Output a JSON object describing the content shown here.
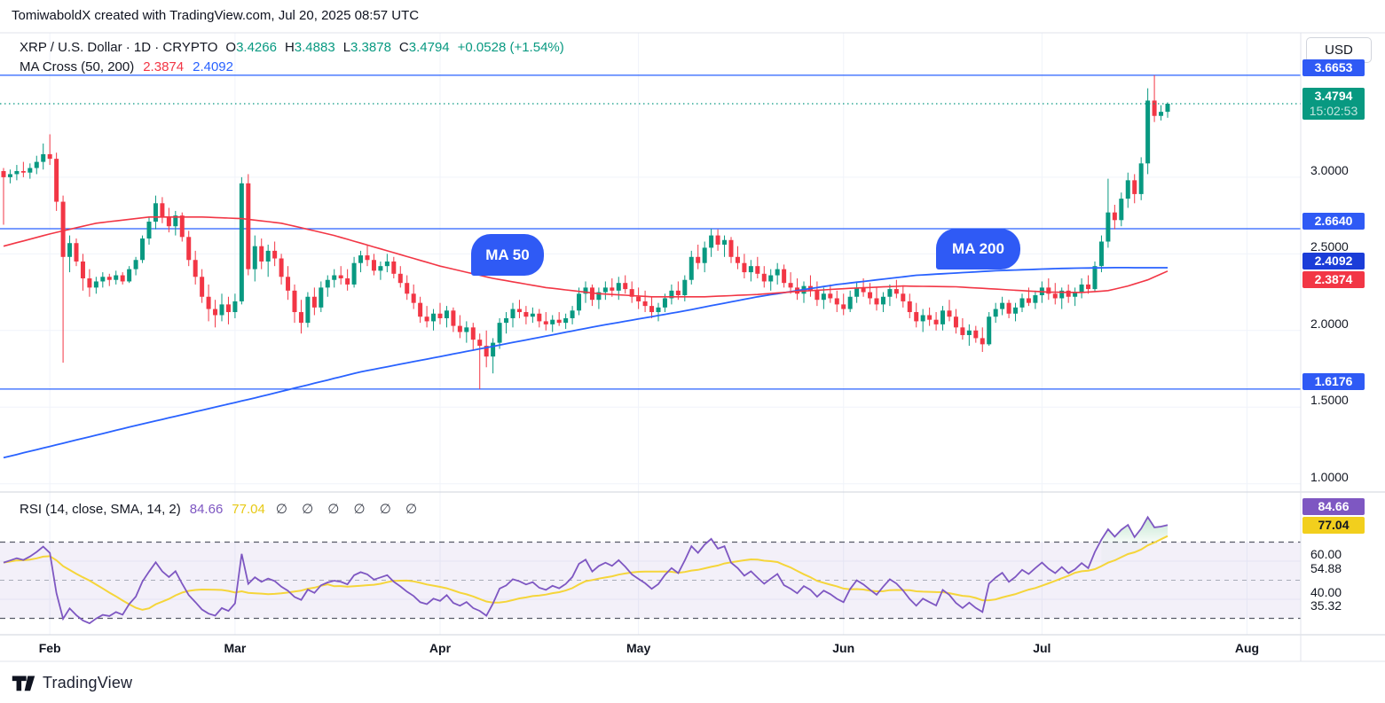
{
  "header": {
    "attribution": "TomiwaboldX created with TradingView.com, Jul 20, 2025 08:57 UTC"
  },
  "legend": {
    "symbol_title": "XRP / U.S. Dollar · 1D · CRYPTO",
    "ohlc": [
      {
        "k": "O",
        "v": "3.4266"
      },
      {
        "k": "H",
        "v": "3.4883"
      },
      {
        "k": "L",
        "v": "3.3878"
      },
      {
        "k": "C",
        "v": "3.4794"
      }
    ],
    "change": "+0.0528 (+1.54%)",
    "ma_cross_title": "MA Cross (50, 200)",
    "ma50_value": "2.3874",
    "ma200_value": "2.4092"
  },
  "rsi_legend": {
    "title": "RSI (14, close, SMA, 14, 2)",
    "value": "84.66",
    "ma_value": "77.04",
    "empty_params": "∅ ∅ ∅ ∅ ∅ ∅"
  },
  "callouts": {
    "ma50": "MA 50",
    "ma200": "MA 200"
  },
  "price_scale": {
    "currency_button": "USD",
    "price_ticks": [
      {
        "text": "3.0000",
        "value": 3.0
      },
      {
        "text": "2.5000",
        "value": 2.5
      },
      {
        "text": "2.0000",
        "value": 2.0
      },
      {
        "text": "1.5000",
        "value": 1.5
      },
      {
        "text": "1.0000",
        "value": 1.0
      }
    ],
    "rsi_ticks": [
      {
        "text": "60.00",
        "value": 60,
        "offset": 0
      },
      {
        "text": "54.88",
        "value": 54.88,
        "offset": 5
      },
      {
        "text": "40.00",
        "value": 40,
        "offset": 0
      },
      {
        "text": "35.32",
        "value": 35.32,
        "offset": 5
      }
    ],
    "labels": [
      {
        "text": "3.6653",
        "value": 3.6653,
        "pane": "price",
        "bg": "#2f5af5",
        "fg": "#ffffff",
        "offset": 0
      },
      {
        "text": "3.4794",
        "value": 3.4794,
        "pane": "price",
        "bg": "#089981",
        "fg": "#ffffff",
        "offset": 0,
        "countdown": "15:02:53"
      },
      {
        "text": "2.6640",
        "value": 2.664,
        "pane": "price",
        "bg": "#2f5af5",
        "fg": "#ffffff",
        "offset": 0
      },
      {
        "text": "2.4092",
        "value": 2.4092,
        "pane": "price",
        "bg": "#1b3dd8",
        "fg": "#ffffff",
        "offset": 0
      },
      {
        "text": "2.3874",
        "value": 2.3874,
        "pane": "price",
        "bg": "#f23645",
        "fg": "#ffffff",
        "offset": 18
      },
      {
        "text": "1.6176",
        "value": 1.6176,
        "pane": "price",
        "bg": "#2f5af5",
        "fg": "#ffffff",
        "offset": 0
      },
      {
        "text": "84.66",
        "value": 84.66,
        "pane": "rsi",
        "bg": "#7e57c2",
        "fg": "#ffffff",
        "offset": 0
      },
      {
        "text": "77.04",
        "value": 77.04,
        "pane": "rsi",
        "bg": "#f2cf1d",
        "fg": "#131722",
        "offset": 4
      }
    ]
  },
  "footer": {
    "brand": "TradingView"
  },
  "colors": {
    "up": "#089981",
    "down": "#f23645",
    "level_blue": "#2962ff",
    "ma50_line": "#f23645",
    "ma200_line": "#2962ff",
    "rsi_line": "#7e57c2",
    "rsi_ma_line": "#f5d53a",
    "grid": "#f0f3fa",
    "band": "rgba(126,87,194,0.09)",
    "dash_strong": "#565a66",
    "dash_mid": "#a8acb8",
    "border": "#e0e3eb",
    "divider": "#cfd3db",
    "fill_green": "#3fae6a"
  },
  "chart_data": {
    "type": "bar",
    "subtype": "candlestick-with-rsi",
    "symbol": "XRP/USD",
    "interval": "1D",
    "exchange": "CRYPTO",
    "start_date": "2025-01-25",
    "title": "XRP / U.S. Dollar daily candles with MA Cross (50, 200) and RSI(14)",
    "ylim_price": [
      0.95,
      3.75
    ],
    "ylim_rsi": [
      25,
      95
    ],
    "months": [
      {
        "label": "Feb",
        "day": 7
      },
      {
        "label": "Mar",
        "day": 35
      },
      {
        "label": "Apr",
        "day": 66
      },
      {
        "label": "May",
        "day": 96
      },
      {
        "label": "Jun",
        "day": 127
      },
      {
        "label": "Jul",
        "day": 157
      },
      {
        "label": "Aug",
        "day": 188
      }
    ],
    "levels": [
      3.6653,
      2.664,
      1.6176
    ],
    "close_line": 3.4794,
    "last": {
      "open": 3.4266,
      "high": 3.4883,
      "low": 3.3878,
      "close": 3.4794,
      "change": 0.0528,
      "change_pct": 1.54
    },
    "rsi_cfg": {
      "period": 14,
      "upper": 70,
      "middle": 50,
      "lower": 30,
      "final": 84.66,
      "ma_final": 77.04
    },
    "ma50_anchors": [
      [
        0,
        2.55
      ],
      [
        7,
        2.63
      ],
      [
        14,
        2.7
      ],
      [
        22,
        2.74
      ],
      [
        30,
        2.74
      ],
      [
        36,
        2.73
      ],
      [
        42,
        2.7
      ],
      [
        50,
        2.62
      ],
      [
        58,
        2.52
      ],
      [
        66,
        2.42
      ],
      [
        74,
        2.34
      ],
      [
        82,
        2.28
      ],
      [
        90,
        2.24
      ],
      [
        98,
        2.22
      ],
      [
        106,
        2.22
      ],
      [
        114,
        2.235
      ],
      [
        120,
        2.255
      ],
      [
        128,
        2.275
      ],
      [
        136,
        2.29
      ],
      [
        144,
        2.285
      ],
      [
        152,
        2.265
      ],
      [
        158,
        2.25
      ],
      [
        163,
        2.248
      ],
      [
        167,
        2.26
      ],
      [
        170,
        2.29
      ],
      [
        173,
        2.33
      ],
      [
        176,
        2.3874
      ]
    ],
    "ma200_anchors": [
      [
        0,
        1.17
      ],
      [
        20,
        1.38
      ],
      [
        38,
        1.56
      ],
      [
        54,
        1.73
      ],
      [
        72,
        1.88
      ],
      [
        90,
        2.03
      ],
      [
        102,
        2.12
      ],
      [
        114,
        2.22
      ],
      [
        126,
        2.3
      ],
      [
        138,
        2.36
      ],
      [
        150,
        2.39
      ],
      [
        160,
        2.405
      ],
      [
        168,
        2.41
      ],
      [
        176,
        2.4092
      ]
    ],
    "candles": [
      [
        3.04,
        3.06,
        2.69,
        3.0
      ],
      [
        3.0,
        3.05,
        2.96,
        3.02
      ],
      [
        3.02,
        3.08,
        2.98,
        3.04
      ],
      [
        3.04,
        3.1,
        3.0,
        3.03
      ],
      [
        3.03,
        3.09,
        2.99,
        3.06
      ],
      [
        3.06,
        3.14,
        3.02,
        3.1
      ],
      [
        3.1,
        3.22,
        3.05,
        3.15
      ],
      [
        3.15,
        3.28,
        3.08,
        3.12
      ],
      [
        3.12,
        3.16,
        2.78,
        2.84
      ],
      [
        2.84,
        2.88,
        1.79,
        2.48
      ],
      [
        2.48,
        2.62,
        2.38,
        2.57
      ],
      [
        2.57,
        2.6,
        2.42,
        2.45
      ],
      [
        2.45,
        2.5,
        2.26,
        2.34
      ],
      [
        2.34,
        2.4,
        2.22,
        2.28
      ],
      [
        2.28,
        2.35,
        2.24,
        2.32
      ],
      [
        2.32,
        2.38,
        2.28,
        2.35
      ],
      [
        2.35,
        2.37,
        2.29,
        2.33
      ],
      [
        2.33,
        2.39,
        2.3,
        2.36
      ],
      [
        2.36,
        2.38,
        2.3,
        2.32
      ],
      [
        2.32,
        2.42,
        2.31,
        2.4
      ],
      [
        2.4,
        2.48,
        2.36,
        2.46
      ],
      [
        2.46,
        2.62,
        2.44,
        2.6
      ],
      [
        2.6,
        2.74,
        2.56,
        2.71
      ],
      [
        2.71,
        2.88,
        2.66,
        2.83
      ],
      [
        2.83,
        2.87,
        2.7,
        2.74
      ],
      [
        2.74,
        2.8,
        2.64,
        2.68
      ],
      [
        2.68,
        2.78,
        2.62,
        2.75
      ],
      [
        2.75,
        2.77,
        2.58,
        2.61
      ],
      [
        2.61,
        2.65,
        2.42,
        2.46
      ],
      [
        2.46,
        2.52,
        2.3,
        2.35
      ],
      [
        2.35,
        2.4,
        2.18,
        2.22
      ],
      [
        2.22,
        2.3,
        2.06,
        2.14
      ],
      [
        2.14,
        2.2,
        2.02,
        2.1
      ],
      [
        2.1,
        2.24,
        2.06,
        2.17
      ],
      [
        2.17,
        2.22,
        2.04,
        2.12
      ],
      [
        2.12,
        2.24,
        2.08,
        2.19
      ],
      [
        2.19,
        3.0,
        2.17,
        2.96
      ],
      [
        2.96,
        3.02,
        2.36,
        2.4
      ],
      [
        2.4,
        2.62,
        2.32,
        2.55
      ],
      [
        2.55,
        2.6,
        2.4,
        2.45
      ],
      [
        2.45,
        2.56,
        2.35,
        2.52
      ],
      [
        2.52,
        2.58,
        2.42,
        2.47
      ],
      [
        2.47,
        2.5,
        2.3,
        2.35
      ],
      [
        2.35,
        2.42,
        2.2,
        2.26
      ],
      [
        2.26,
        2.3,
        2.05,
        2.12
      ],
      [
        2.12,
        2.2,
        1.98,
        2.05
      ],
      [
        2.05,
        2.25,
        2.02,
        2.22
      ],
      [
        2.22,
        2.28,
        2.1,
        2.15
      ],
      [
        2.15,
        2.32,
        2.12,
        2.28
      ],
      [
        2.28,
        2.36,
        2.22,
        2.33
      ],
      [
        2.33,
        2.4,
        2.28,
        2.36
      ],
      [
        2.36,
        2.42,
        2.3,
        2.34
      ],
      [
        2.34,
        2.4,
        2.26,
        2.3
      ],
      [
        2.3,
        2.48,
        2.28,
        2.44
      ],
      [
        2.44,
        2.52,
        2.38,
        2.49
      ],
      [
        2.49,
        2.56,
        2.42,
        2.46
      ],
      [
        2.46,
        2.5,
        2.36,
        2.39
      ],
      [
        2.39,
        2.45,
        2.33,
        2.42
      ],
      [
        2.42,
        2.5,
        2.38,
        2.45
      ],
      [
        2.45,
        2.48,
        2.34,
        2.37
      ],
      [
        2.37,
        2.42,
        2.28,
        2.31
      ],
      [
        2.31,
        2.36,
        2.2,
        2.24
      ],
      [
        2.24,
        2.3,
        2.14,
        2.18
      ],
      [
        2.18,
        2.22,
        2.05,
        2.09
      ],
      [
        2.09,
        2.16,
        2.02,
        2.06
      ],
      [
        2.06,
        2.14,
        2.0,
        2.11
      ],
      [
        2.11,
        2.18,
        2.04,
        2.08
      ],
      [
        2.08,
        2.16,
        2.02,
        2.13
      ],
      [
        2.13,
        2.15,
        1.99,
        2.03
      ],
      [
        2.03,
        2.1,
        1.95,
        1.99
      ],
      [
        1.99,
        2.06,
        1.92,
        2.02
      ],
      [
        2.02,
        2.05,
        1.87,
        1.94
      ],
      [
        1.94,
        1.98,
        1.6176,
        1.9
      ],
      [
        1.9,
        2.0,
        1.76,
        1.83
      ],
      [
        1.83,
        1.95,
        1.72,
        1.92
      ],
      [
        1.92,
        2.08,
        1.88,
        2.05
      ],
      [
        2.05,
        2.12,
        1.98,
        2.08
      ],
      [
        2.08,
        2.18,
        2.02,
        2.14
      ],
      [
        2.14,
        2.2,
        2.08,
        2.12
      ],
      [
        2.12,
        2.16,
        2.04,
        2.09
      ],
      [
        2.09,
        2.15,
        2.05,
        2.11
      ],
      [
        2.11,
        2.14,
        2.02,
        2.06
      ],
      [
        2.06,
        2.12,
        2.0,
        2.04
      ],
      [
        2.04,
        2.1,
        1.99,
        2.07
      ],
      [
        2.07,
        2.12,
        2.03,
        2.05
      ],
      [
        2.05,
        2.11,
        2.01,
        2.08
      ],
      [
        2.08,
        2.16,
        2.04,
        2.13
      ],
      [
        2.13,
        2.28,
        2.1,
        2.24
      ],
      [
        2.24,
        2.32,
        2.18,
        2.28
      ],
      [
        2.28,
        2.3,
        2.16,
        2.2
      ],
      [
        2.2,
        2.28,
        2.14,
        2.25
      ],
      [
        2.25,
        2.32,
        2.2,
        2.28
      ],
      [
        2.28,
        2.34,
        2.22,
        2.26
      ],
      [
        2.26,
        2.35,
        2.2,
        2.31
      ],
      [
        2.31,
        2.36,
        2.24,
        2.27
      ],
      [
        2.27,
        2.32,
        2.18,
        2.22
      ],
      [
        2.22,
        2.28,
        2.14,
        2.19
      ],
      [
        2.19,
        2.26,
        2.12,
        2.16
      ],
      [
        2.16,
        2.22,
        2.08,
        2.12
      ],
      [
        2.12,
        2.18,
        2.06,
        2.15
      ],
      [
        2.15,
        2.24,
        2.12,
        2.21
      ],
      [
        2.21,
        2.3,
        2.17,
        2.26
      ],
      [
        2.26,
        2.32,
        2.2,
        2.23
      ],
      [
        2.23,
        2.36,
        2.19,
        2.33
      ],
      [
        2.33,
        2.52,
        2.3,
        2.48
      ],
      [
        2.48,
        2.56,
        2.4,
        2.44
      ],
      [
        2.44,
        2.58,
        2.38,
        2.54
      ],
      [
        2.54,
        2.664,
        2.48,
        2.62
      ],
      [
        2.62,
        2.66,
        2.52,
        2.56
      ],
      [
        2.56,
        2.62,
        2.48,
        2.59
      ],
      [
        2.59,
        2.61,
        2.44,
        2.48
      ],
      [
        2.48,
        2.55,
        2.4,
        2.44
      ],
      [
        2.44,
        2.5,
        2.34,
        2.38
      ],
      [
        2.38,
        2.46,
        2.32,
        2.42
      ],
      [
        2.42,
        2.48,
        2.34,
        2.37
      ],
      [
        2.37,
        2.42,
        2.28,
        2.32
      ],
      [
        2.32,
        2.4,
        2.26,
        2.36
      ],
      [
        2.36,
        2.44,
        2.3,
        2.4
      ],
      [
        2.4,
        2.43,
        2.28,
        2.31
      ],
      [
        2.31,
        2.38,
        2.24,
        2.28
      ],
      [
        2.28,
        2.34,
        2.2,
        2.24
      ],
      [
        2.24,
        2.32,
        2.18,
        2.29
      ],
      [
        2.29,
        2.36,
        2.22,
        2.26
      ],
      [
        2.26,
        2.32,
        2.16,
        2.2
      ],
      [
        2.2,
        2.28,
        2.14,
        2.24
      ],
      [
        2.24,
        2.3,
        2.18,
        2.21
      ],
      [
        2.21,
        2.26,
        2.12,
        2.17
      ],
      [
        2.17,
        2.24,
        2.1,
        2.14
      ],
      [
        2.14,
        2.26,
        2.12,
        2.22
      ],
      [
        2.22,
        2.32,
        2.18,
        2.28
      ],
      [
        2.28,
        2.34,
        2.22,
        2.25
      ],
      [
        2.25,
        2.31,
        2.17,
        2.21
      ],
      [
        2.21,
        2.28,
        2.13,
        2.17
      ],
      [
        2.17,
        2.25,
        2.12,
        2.22
      ],
      [
        2.22,
        2.3,
        2.16,
        2.27
      ],
      [
        2.27,
        2.33,
        2.21,
        2.24
      ],
      [
        2.24,
        2.29,
        2.15,
        2.19
      ],
      [
        2.19,
        2.24,
        2.08,
        2.12
      ],
      [
        2.12,
        2.18,
        2.02,
        2.06
      ],
      [
        2.06,
        2.14,
        1.99,
        2.1
      ],
      [
        2.1,
        2.15,
        2.03,
        2.07
      ],
      [
        2.07,
        2.12,
        2.0,
        2.04
      ],
      [
        2.04,
        2.16,
        2.0,
        2.13
      ],
      [
        2.13,
        2.2,
        2.06,
        2.09
      ],
      [
        2.09,
        2.14,
        1.98,
        2.02
      ],
      [
        2.02,
        2.08,
        1.94,
        1.97
      ],
      [
        1.97,
        2.04,
        1.9,
        2.0
      ],
      [
        2.0,
        2.03,
        1.92,
        1.95
      ],
      [
        1.95,
        2.02,
        1.86,
        1.91
      ],
      [
        1.91,
        2.12,
        1.9,
        2.09
      ],
      [
        2.09,
        2.18,
        2.05,
        2.14
      ],
      [
        2.14,
        2.22,
        2.1,
        2.18
      ],
      [
        2.18,
        2.2,
        2.08,
        2.11
      ],
      [
        2.11,
        2.18,
        2.06,
        2.15
      ],
      [
        2.15,
        2.24,
        2.12,
        2.21
      ],
      [
        2.21,
        2.28,
        2.16,
        2.18
      ],
      [
        2.18,
        2.26,
        2.14,
        2.23
      ],
      [
        2.23,
        2.32,
        2.18,
        2.28
      ],
      [
        2.28,
        2.34,
        2.2,
        2.24
      ],
      [
        2.24,
        2.31,
        2.17,
        2.21
      ],
      [
        2.21,
        2.28,
        2.14,
        2.26
      ],
      [
        2.26,
        2.3,
        2.18,
        2.22
      ],
      [
        2.22,
        2.28,
        2.16,
        2.25
      ],
      [
        2.25,
        2.34,
        2.21,
        2.3
      ],
      [
        2.3,
        2.36,
        2.24,
        2.27
      ],
      [
        2.27,
        2.45,
        2.25,
        2.42
      ],
      [
        2.42,
        2.62,
        2.38,
        2.58
      ],
      [
        2.58,
        2.99,
        2.54,
        2.77
      ],
      [
        2.77,
        2.82,
        2.66,
        2.72
      ],
      [
        2.72,
        2.9,
        2.68,
        2.86
      ],
      [
        2.86,
        3.03,
        2.8,
        2.98
      ],
      [
        2.98,
        3.02,
        2.83,
        2.89
      ],
      [
        2.89,
        3.13,
        2.85,
        3.09
      ],
      [
        3.09,
        3.58,
        3.02,
        3.5
      ],
      [
        3.5,
        3.6653,
        3.36,
        3.4
      ],
      [
        3.4,
        3.47,
        3.37,
        3.4266
      ],
      [
        3.4266,
        3.4883,
        3.3878,
        3.4794
      ]
    ]
  }
}
